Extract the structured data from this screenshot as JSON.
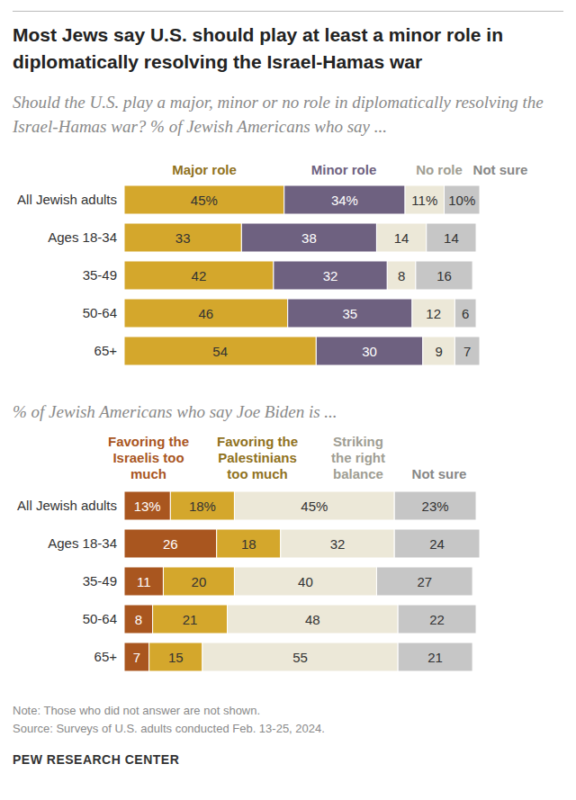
{
  "chart_data": [
    {
      "type": "bar",
      "title": "Most Jews say U.S. should play at least a minor role in diplomatically resolving the Israel-Hamas war",
      "subtitle": "Should the U.S. play a major, minor or no role in diplomatically resolving the Israel-Hamas war? % of Jewish Americans who say ...",
      "orientation": "horizontal",
      "stacked": true,
      "data_labels": true,
      "tick_labels": "y",
      "xlim": [
        0,
        100
      ],
      "categories": [
        "All Jewish adults",
        "Ages 18-34",
        "35-49",
        "50-64",
        "65+"
      ],
      "series": [
        {
          "name": "Major role",
          "color": "#d4a72c",
          "values": [
            45,
            33,
            42,
            46,
            54
          ],
          "value_labels": [
            "45%",
            "33",
            "42",
            "46",
            "54"
          ]
        },
        {
          "name": "Minor role",
          "color": "#6e6180",
          "values": [
            34,
            38,
            32,
            35,
            30
          ],
          "value_labels": [
            "34%",
            "38",
            "32",
            "35",
            "30"
          ]
        },
        {
          "name": "No role",
          "color": "#ece8d8",
          "values": [
            11,
            14,
            8,
            12,
            9
          ],
          "value_labels": [
            "11%",
            "14",
            "8",
            "12",
            "9"
          ]
        },
        {
          "name": "Not sure",
          "color": "#c6c6c6",
          "values": [
            10,
            14,
            16,
            6,
            7
          ],
          "value_labels": [
            "10%",
            "14",
            "16",
            "6",
            "7"
          ]
        }
      ]
    },
    {
      "type": "bar",
      "subtitle": "% of Jewish Americans who say Joe Biden is ...",
      "orientation": "horizontal",
      "stacked": true,
      "data_labels": true,
      "tick_labels": "y",
      "xlim": [
        0,
        100
      ],
      "categories": [
        "All Jewish adults",
        "Ages 18-34",
        "35-49",
        "50-64",
        "65+"
      ],
      "series": [
        {
          "name": "Favoring the Israelis too much",
          "color": "#a9561f",
          "values": [
            13,
            26,
            11,
            8,
            7
          ],
          "value_labels": [
            "13%",
            "26",
            "11",
            "8",
            "7"
          ]
        },
        {
          "name": "Favoring the Palestinians too much",
          "color": "#d4a72c",
          "values": [
            18,
            18,
            20,
            21,
            15
          ],
          "value_labels": [
            "18%",
            "18",
            "20",
            "21",
            "15"
          ]
        },
        {
          "name": "Striking the right balance",
          "color": "#ece8d8",
          "values": [
            45,
            32,
            40,
            48,
            55
          ],
          "value_labels": [
            "45%",
            "32",
            "40",
            "48",
            "55"
          ]
        },
        {
          "name": "Not sure",
          "color": "#c6c6c6",
          "values": [
            23,
            24,
            27,
            22,
            21
          ],
          "value_labels": [
            "23%",
            "24",
            "27",
            "22",
            "21"
          ]
        }
      ],
      "annotations": [
        "Note: Those who did not answer are not shown.",
        "Source: Surveys of U.S. adults conducted Feb. 13-25, 2024.",
        "PEW RESEARCH CENTER"
      ]
    }
  ]
}
